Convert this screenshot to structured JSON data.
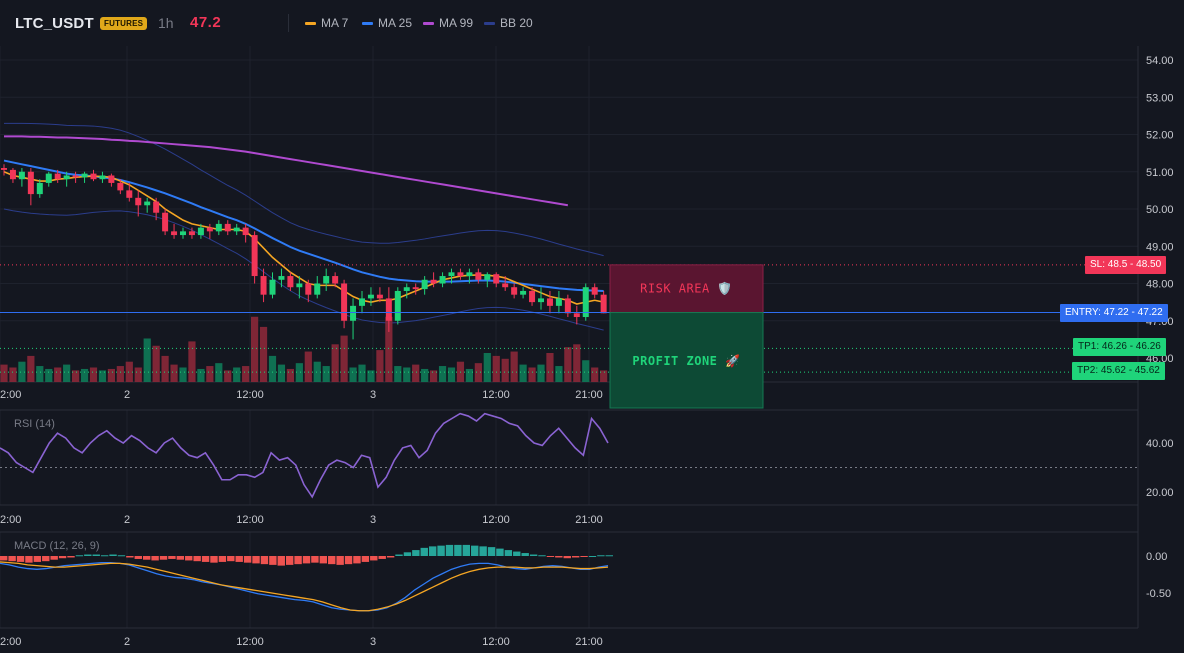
{
  "header": {
    "symbol": "LTC_USDT",
    "badge": "FUTURES",
    "timeframe": "1h",
    "last_price": "47.2",
    "indicators": [
      {
        "label": "MA 7",
        "color": "#f5a623"
      },
      {
        "label": "MA 25",
        "color": "#2f7bf5"
      },
      {
        "label": "MA 99",
        "color": "#b04ad0"
      },
      {
        "label": "BB 20",
        "color": "#2b3d8c"
      }
    ]
  },
  "price_axis": [
    "54.00",
    "53.00",
    "52.00",
    "51.00",
    "50.00",
    "49.00",
    "48.00",
    "47.00",
    "46.00"
  ],
  "time_axis": [
    "2:00",
    "2",
    "12:00",
    "3",
    "12:00",
    "21:00"
  ],
  "levels": {
    "sl": {
      "label": "SL: 48.5 - 48.50",
      "price": 48.5,
      "color": "#f23658"
    },
    "entry": {
      "label": "ENTRY: 47.22 - 47.22",
      "price": 47.22,
      "color": "#2f6df0"
    },
    "tp1": {
      "label": "TP1: 46.26 - 46.26",
      "price": 46.26,
      "color": "#1fd47a"
    },
    "tp2": {
      "label": "TP2: 45.62 - 45.62",
      "price": 45.62,
      "color": "#1fd47a"
    }
  },
  "zones": {
    "risk": "RISK AREA 🛡️",
    "profit": "PROFIT ZONE 🚀"
  },
  "rsi": {
    "title": "RSI (14)",
    "axis": [
      "40.00",
      "20.00"
    ],
    "level": 30,
    "values": [
      38,
      36,
      32,
      30,
      28,
      34,
      40,
      44,
      42,
      38,
      36,
      40,
      43,
      45,
      42,
      40,
      43,
      41,
      38,
      36,
      40,
      42,
      38,
      35,
      34,
      36,
      31,
      25,
      25,
      27,
      27,
      26,
      28,
      36,
      33,
      34,
      31,
      23,
      18,
      25,
      31,
      33,
      32,
      30,
      35,
      34,
      22,
      26,
      33,
      38,
      39,
      34,
      37,
      44,
      48,
      50,
      52,
      51,
      49,
      52,
      51,
      50,
      48,
      47,
      43,
      40,
      39,
      43,
      46,
      42,
      38,
      35,
      50,
      46,
      40
    ]
  },
  "macd": {
    "title": "MACD (12, 26, 9)",
    "axis": [
      "0.00",
      "-0.50"
    ],
    "hist": [
      -0.06,
      -0.07,
      -0.08,
      -0.09,
      -0.08,
      -0.07,
      -0.05,
      -0.03,
      -0.02,
      0.01,
      0.02,
      0.02,
      0.01,
      0.02,
      0.01,
      -0.02,
      -0.04,
      -0.05,
      -0.06,
      -0.05,
      -0.04,
      -0.05,
      -0.06,
      -0.07,
      -0.08,
      -0.09,
      -0.08,
      -0.07,
      -0.08,
      -0.09,
      -0.1,
      -0.11,
      -0.12,
      -0.13,
      -0.12,
      -0.11,
      -0.1,
      -0.09,
      -0.1,
      -0.11,
      -0.12,
      -0.11,
      -0.1,
      -0.08,
      -0.06,
      -0.04,
      -0.02,
      0.02,
      0.05,
      0.08,
      0.11,
      0.13,
      0.14,
      0.15,
      0.15,
      0.15,
      0.14,
      0.13,
      0.12,
      0.1,
      0.08,
      0.06,
      0.04,
      0.02,
      0.01,
      -0.01,
      -0.02,
      -0.03,
      -0.02,
      -0.01,
      0.0,
      0.01,
      0.01
    ],
    "macd_line": [
      -0.1,
      -0.12,
      -0.15,
      -0.17,
      -0.18,
      -0.17,
      -0.15,
      -0.13,
      -0.12,
      -0.11,
      -0.1,
      -0.09,
      -0.09,
      -0.1,
      -0.12,
      -0.16,
      -0.2,
      -0.24,
      -0.27,
      -0.29,
      -0.3,
      -0.32,
      -0.35,
      -0.37,
      -0.39,
      -0.42,
      -0.45,
      -0.48,
      -0.51,
      -0.53,
      -0.55,
      -0.57,
      -0.59,
      -0.6,
      -0.62,
      -0.66,
      -0.7,
      -0.72,
      -0.73,
      -0.74,
      -0.74,
      -0.73,
      -0.7,
      -0.64,
      -0.56,
      -0.46,
      -0.38,
      -0.3,
      -0.24,
      -0.18,
      -0.14,
      -0.11,
      -0.1,
      -0.1,
      -0.12,
      -0.15,
      -0.17,
      -0.18,
      -0.16,
      -0.14,
      -0.13,
      -0.14,
      -0.16,
      -0.18,
      -0.18,
      -0.15,
      -0.13
    ],
    "signal_line": [
      -0.08,
      -0.09,
      -0.1,
      -0.12,
      -0.13,
      -0.14,
      -0.15,
      -0.15,
      -0.14,
      -0.13,
      -0.12,
      -0.11,
      -0.1,
      -0.1,
      -0.11,
      -0.13,
      -0.15,
      -0.18,
      -0.21,
      -0.24,
      -0.27,
      -0.3,
      -0.33,
      -0.36,
      -0.39,
      -0.41,
      -0.43,
      -0.45,
      -0.47,
      -0.49,
      -0.51,
      -0.53,
      -0.55,
      -0.57,
      -0.59,
      -0.62,
      -0.66,
      -0.7,
      -0.73,
      -0.74,
      -0.74,
      -0.72,
      -0.69,
      -0.65,
      -0.6,
      -0.54,
      -0.48,
      -0.42,
      -0.36,
      -0.3,
      -0.25,
      -0.21,
      -0.18,
      -0.16,
      -0.15,
      -0.15,
      -0.15,
      -0.16,
      -0.16,
      -0.15,
      -0.15,
      -0.15,
      -0.16,
      -0.17,
      -0.17,
      -0.16,
      -0.15
    ]
  },
  "chart_data": {
    "type": "candlestick",
    "price_range": [
      45.2,
      54.4
    ],
    "candles": [
      [
        51.1,
        51.2,
        50.9,
        51.05
      ],
      [
        51.05,
        51.1,
        50.7,
        50.8
      ],
      [
        50.8,
        51.1,
        50.6,
        51.0
      ],
      [
        51.0,
        51.1,
        50.1,
        50.4
      ],
      [
        50.4,
        50.8,
        50.3,
        50.7
      ],
      [
        50.7,
        51.0,
        50.6,
        50.95
      ],
      [
        50.95,
        51.05,
        50.7,
        50.8
      ],
      [
        50.8,
        51.0,
        50.6,
        50.9
      ],
      [
        50.9,
        51.0,
        50.7,
        50.85
      ],
      [
        50.85,
        51.0,
        50.7,
        50.95
      ],
      [
        50.95,
        51.05,
        50.75,
        50.8
      ],
      [
        50.8,
        51.0,
        50.7,
        50.9
      ],
      [
        50.9,
        50.95,
        50.6,
        50.7
      ],
      [
        50.7,
        50.8,
        50.4,
        50.5
      ],
      [
        50.5,
        50.7,
        50.2,
        50.3
      ],
      [
        50.3,
        50.5,
        49.8,
        50.1
      ],
      [
        50.1,
        50.3,
        49.9,
        50.2
      ],
      [
        50.2,
        50.3,
        49.7,
        49.9
      ],
      [
        49.9,
        50.0,
        49.3,
        49.4
      ],
      [
        49.4,
        49.6,
        49.2,
        49.3
      ],
      [
        49.3,
        49.5,
        49.2,
        49.4
      ],
      [
        49.4,
        49.5,
        49.2,
        49.3
      ],
      [
        49.3,
        49.6,
        49.2,
        49.5
      ],
      [
        49.5,
        49.6,
        49.2,
        49.4
      ],
      [
        49.4,
        49.7,
        49.3,
        49.6
      ],
      [
        49.6,
        49.7,
        49.3,
        49.4
      ],
      [
        49.4,
        49.6,
        49.3,
        49.5
      ],
      [
        49.5,
        49.6,
        49.1,
        49.3
      ],
      [
        49.3,
        49.4,
        48.0,
        48.2
      ],
      [
        48.2,
        48.4,
        47.5,
        47.7
      ],
      [
        47.7,
        48.3,
        47.6,
        48.1
      ],
      [
        48.1,
        48.4,
        47.9,
        48.2
      ],
      [
        48.2,
        48.3,
        47.8,
        47.9
      ],
      [
        47.9,
        48.2,
        47.6,
        48.0
      ],
      [
        48.0,
        48.1,
        47.5,
        47.7
      ],
      [
        47.7,
        48.2,
        47.6,
        48.0
      ],
      [
        48.0,
        48.4,
        47.8,
        48.2
      ],
      [
        48.2,
        48.3,
        47.9,
        48.0
      ],
      [
        48.0,
        48.1,
        46.8,
        47.0
      ],
      [
        47.0,
        47.6,
        46.5,
        47.4
      ],
      [
        47.4,
        47.8,
        47.2,
        47.6
      ],
      [
        47.6,
        47.9,
        47.4,
        47.7
      ],
      [
        47.7,
        47.9,
        47.5,
        47.6
      ],
      [
        47.6,
        47.9,
        46.7,
        47.0
      ],
      [
        47.0,
        47.9,
        46.9,
        47.8
      ],
      [
        47.8,
        48.0,
        47.6,
        47.9
      ],
      [
        47.9,
        48.0,
        47.7,
        47.85
      ],
      [
        47.85,
        48.2,
        47.7,
        48.1
      ],
      [
        48.1,
        48.3,
        47.9,
        48.0
      ],
      [
        48.0,
        48.3,
        47.9,
        48.2
      ],
      [
        48.2,
        48.4,
        48.0,
        48.3
      ],
      [
        48.3,
        48.4,
        48.1,
        48.2
      ],
      [
        48.2,
        48.4,
        48.0,
        48.3
      ],
      [
        48.3,
        48.4,
        48.0,
        48.1
      ],
      [
        48.1,
        48.3,
        47.9,
        48.25
      ],
      [
        48.25,
        48.3,
        47.9,
        48.0
      ],
      [
        48.0,
        48.2,
        47.8,
        47.9
      ],
      [
        47.9,
        48.0,
        47.6,
        47.7
      ],
      [
        47.7,
        47.9,
        47.6,
        47.8
      ],
      [
        47.8,
        47.9,
        47.4,
        47.5
      ],
      [
        47.5,
        47.9,
        47.3,
        47.6
      ],
      [
        47.6,
        47.8,
        47.2,
        47.4
      ],
      [
        47.4,
        47.8,
        47.2,
        47.6
      ],
      [
        47.6,
        47.7,
        47.1,
        47.2
      ],
      [
        47.2,
        47.4,
        46.9,
        47.1
      ],
      [
        47.1,
        48.0,
        47.0,
        47.9
      ],
      [
        47.9,
        48.0,
        47.6,
        47.7
      ],
      [
        47.7,
        47.8,
        47.2,
        47.2
      ]
    ],
    "volume": [
      12,
      10,
      14,
      18,
      11,
      9,
      10,
      12,
      8,
      9,
      10,
      8,
      9,
      11,
      14,
      10,
      30,
      25,
      18,
      12,
      10,
      28,
      9,
      11,
      13,
      8,
      10,
      11,
      45,
      38,
      18,
      12,
      9,
      13,
      21,
      14,
      11,
      26,
      32,
      10,
      12,
      8,
      22,
      45,
      11,
      10,
      12,
      9,
      8,
      11,
      10,
      14,
      9,
      13,
      20,
      18,
      16,
      21,
      12,
      10,
      12,
      20,
      11,
      24,
      26,
      15,
      10,
      8
    ],
    "ma7": [
      51.0,
      50.9,
      50.85,
      50.8,
      50.75,
      50.75,
      50.8,
      50.82,
      50.85,
      50.87,
      50.88,
      50.87,
      50.85,
      50.75,
      50.65,
      50.5,
      50.35,
      50.2,
      50.0,
      49.85,
      49.7,
      49.6,
      49.55,
      49.5,
      49.45,
      49.45,
      49.45,
      49.4,
      49.2,
      48.95,
      48.7,
      48.5,
      48.3,
      48.15,
      48.0,
      47.95,
      47.95,
      47.95,
      47.8,
      47.65,
      47.55,
      47.5,
      47.55,
      47.55,
      47.6,
      47.7,
      47.8,
      47.9,
      48.0,
      48.1,
      48.15,
      48.2,
      48.22,
      48.23,
      48.22,
      48.2,
      48.15,
      48.05,
      47.95,
      47.85,
      47.75,
      47.65,
      47.6,
      47.55,
      47.45,
      47.5,
      47.55,
      47.5
    ],
    "ma25": [
      51.3,
      51.25,
      51.2,
      51.15,
      51.1,
      51.05,
      51.0,
      50.95,
      50.92,
      50.9,
      50.88,
      50.85,
      50.82,
      50.78,
      50.72,
      50.65,
      50.58,
      50.5,
      50.42,
      50.33,
      50.24,
      50.15,
      50.05,
      49.96,
      49.87,
      49.78,
      49.7,
      49.6,
      49.48,
      49.35,
      49.22,
      49.1,
      48.98,
      48.88,
      48.8,
      48.72,
      48.64,
      48.56,
      48.47,
      48.38,
      48.3,
      48.24,
      48.18,
      48.13,
      48.1,
      48.08,
      48.06,
      48.05,
      48.05,
      48.05,
      48.05,
      48.06,
      48.07,
      48.08,
      48.08,
      48.07,
      48.05,
      48.02,
      47.99,
      47.96,
      47.93,
      47.9,
      47.87,
      47.85,
      47.83,
      47.82,
      47.81,
      47.8
    ],
    "ma99": [
      51.95,
      51.95,
      51.95,
      51.94,
      51.94,
      51.93,
      51.92,
      51.92,
      51.91,
      51.9,
      51.89,
      51.88,
      51.86,
      51.85,
      51.83,
      51.82,
      51.8,
      51.78,
      51.76,
      51.74,
      51.72,
      51.7,
      51.68,
      51.66,
      51.63,
      51.6,
      51.57,
      51.54,
      51.5,
      51.46,
      51.42,
      51.38,
      51.34,
      51.3,
      51.26,
      51.22,
      51.18,
      51.14,
      51.1,
      51.06,
      51.02,
      50.98,
      50.94,
      50.9,
      50.86,
      50.82,
      50.78,
      50.74,
      50.7,
      50.66,
      50.62,
      50.58,
      50.54,
      50.5,
      50.46,
      50.42,
      50.38,
      50.34,
      50.3,
      50.26,
      50.22,
      50.18,
      50.14,
      50.1
    ]
  }
}
